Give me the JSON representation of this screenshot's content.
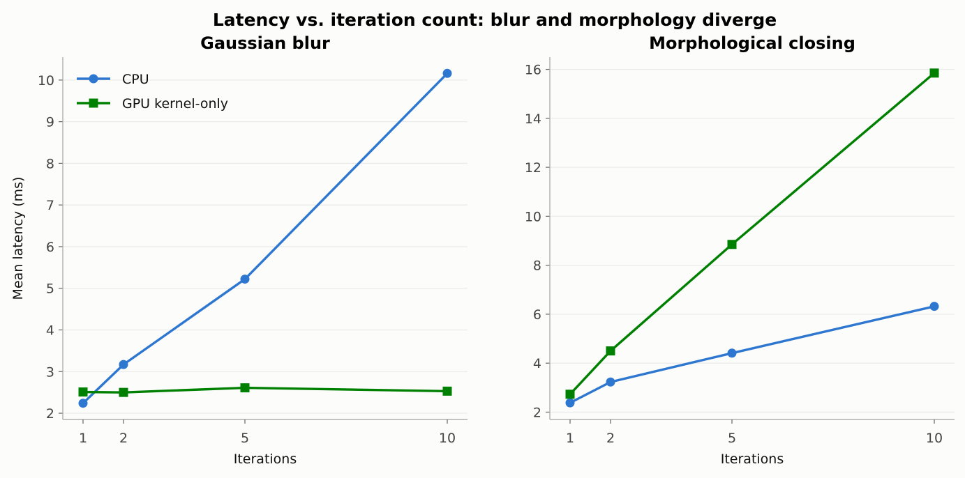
{
  "figure": {
    "title": "Latency vs. iteration count: blur and morphology diverge"
  },
  "colors": {
    "cpu": "#2e77d0",
    "gpu": "#008000",
    "grid": "#ebebeb",
    "axis": "#b0b0b0"
  },
  "chart_data": [
    {
      "type": "line",
      "title": "Gaussian blur",
      "xlabel": "Iterations",
      "ylabel": "Mean latency (ms)",
      "x": [
        1,
        2,
        5,
        10
      ],
      "xticks": [
        "1",
        "2",
        "5",
        "10"
      ],
      "yticks": [
        "2",
        "3",
        "4",
        "5",
        "6",
        "7",
        "8",
        "9",
        "10"
      ],
      "ylim": [
        1.85,
        10.55
      ],
      "xlim": [
        0.5,
        10.5
      ],
      "grid": "horizontal",
      "legend": "top-left",
      "series": [
        {
          "name": "CPU",
          "marker": "circle",
          "color": "#2e77d0",
          "values": [
            2.24,
            3.17,
            5.22,
            10.16
          ]
        },
        {
          "name": "GPU kernel-only",
          "marker": "square",
          "color": "#008000",
          "values": [
            2.51,
            2.5,
            2.61,
            2.53
          ]
        }
      ]
    },
    {
      "type": "line",
      "title": "Morphological closing",
      "xlabel": "Iterations",
      "ylabel": "",
      "x": [
        1,
        2,
        5,
        10
      ],
      "xticks": [
        "1",
        "2",
        "5",
        "10"
      ],
      "yticks": [
        "2",
        "4",
        "6",
        "8",
        "10",
        "12",
        "14",
        "16"
      ],
      "ylim": [
        1.7,
        16.5
      ],
      "xlim": [
        0.5,
        10.5
      ],
      "grid": "horizontal",
      "series": [
        {
          "name": "CPU",
          "marker": "circle",
          "color": "#2e77d0",
          "values": [
            2.38,
            3.23,
            4.41,
            6.32
          ]
        },
        {
          "name": "GPU kernel-only",
          "marker": "square",
          "color": "#008000",
          "values": [
            2.73,
            4.5,
            8.85,
            15.85
          ]
        }
      ]
    }
  ]
}
